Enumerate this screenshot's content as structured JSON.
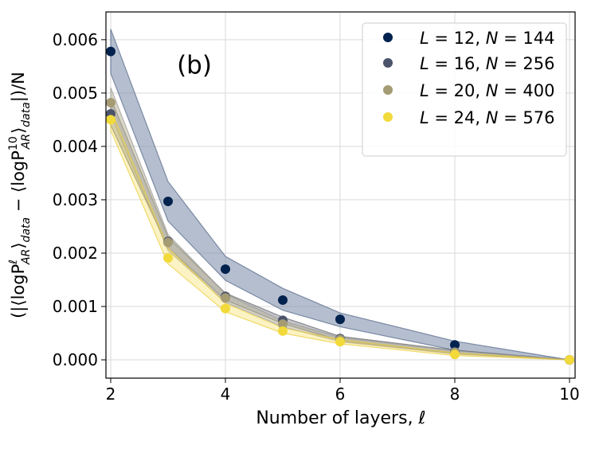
{
  "chart_data": {
    "type": "scatter",
    "panel_label": "(b)",
    "xlabel": "Number of layers, ℓ",
    "ylabel": {
      "prefix": "(|⟨logP",
      "sup1": "ℓ",
      "sub1": "AR",
      "mid1": "⟩",
      "sub2": "data",
      "minus": " − ⟨logP",
      "sup3": "10",
      "sub3": "AR",
      "mid3": "⟩",
      "sub4": "data",
      "suffix": "|)/N"
    },
    "xlim": [
      1.917,
      10.097
    ],
    "ylim": [
      -0.000343,
      0.00652
    ],
    "xticks": [
      2,
      4,
      6,
      8,
      10
    ],
    "xtick_labels": [
      "2",
      "4",
      "6",
      "8",
      "10"
    ],
    "yticks": [
      0,
      0.001,
      0.002,
      0.003,
      0.004,
      0.005,
      0.006
    ],
    "ytick_labels": [
      "0.000",
      "0.001",
      "0.002",
      "0.003",
      "0.004",
      "0.005",
      "0.006"
    ],
    "grid": true,
    "legend_position": "top-right",
    "x": [
      2,
      3,
      4,
      5,
      6,
      8,
      10
    ],
    "series": [
      {
        "name": "L = 12, N = 144",
        "label_L": "12",
        "label_N": "144",
        "color": "#00224e",
        "values": [
          0.00578,
          0.00297,
          0.0017,
          0.00112,
          0.00076,
          0.00028,
          0.0
        ],
        "lower": [
          0.00537,
          0.0026,
          0.00149,
          0.00093,
          0.00062,
          0.00018,
          0.0
        ],
        "upper": [
          0.0062,
          0.00334,
          0.00194,
          0.00134,
          0.00088,
          0.00035,
          0.0
        ]
      },
      {
        "name": "L = 16, N = 256",
        "label_L": "16",
        "label_N": "256",
        "color": "#4c546c",
        "values": [
          0.00461,
          0.00222,
          0.00119,
          0.00074,
          0.0004,
          0.00015,
          0.0
        ],
        "lower": [
          0.0044,
          0.0021,
          0.00112,
          0.00068,
          0.00036,
          0.00012,
          0.0
        ],
        "upper": [
          0.0049,
          0.0023,
          0.00125,
          0.0008,
          0.00044,
          0.00018,
          0.0
        ]
      },
      {
        "name": "L = 20, N = 400",
        "label_L": "20",
        "label_N": "400",
        "color": "#a59c74",
        "values": [
          0.00482,
          0.0022,
          0.00116,
          0.00067,
          0.00038,
          0.00014,
          0.0
        ],
        "lower": [
          0.0046,
          0.00205,
          0.00108,
          0.00062,
          0.00034,
          0.00011,
          0.0
        ],
        "upper": [
          0.0051,
          0.00235,
          0.00124,
          0.00073,
          0.00042,
          0.00017,
          0.0
        ]
      },
      {
        "name": "L = 24, N = 576",
        "label_L": "24",
        "label_N": "576",
        "color": "#f2da3a",
        "values": [
          0.0045,
          0.00191,
          0.00096,
          0.00054,
          0.00034,
          0.0001,
          0.0
        ],
        "lower": [
          0.0043,
          0.0018,
          0.0009,
          0.0005,
          0.0003,
          8e-05,
          0.0
        ],
        "upper": [
          0.0047,
          0.0021,
          0.00106,
          0.0006,
          0.00038,
          0.00013,
          0.0
        ]
      }
    ]
  }
}
